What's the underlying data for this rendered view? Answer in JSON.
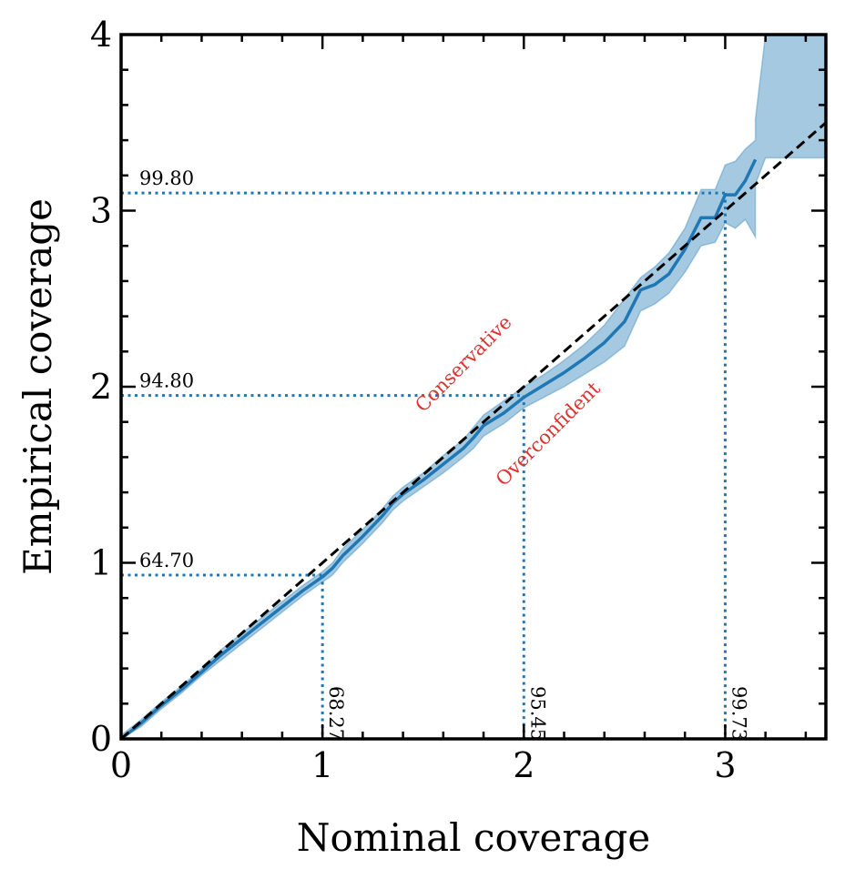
{
  "chart_data": {
    "type": "line",
    "title": "",
    "xlabel": "Nominal coverage",
    "ylabel": "Empirical coverage",
    "xlim": [
      0,
      3.5
    ],
    "ylim": [
      0,
      4
    ],
    "xticks": [
      0,
      1,
      2,
      3
    ],
    "yticks": [
      0,
      1,
      2,
      3,
      4
    ],
    "xtick_labels": [
      "0",
      "1",
      "2",
      "3"
    ],
    "ytick_labels": [
      "0",
      "1",
      "2",
      "3",
      "4"
    ],
    "grid": false,
    "series": [
      {
        "color": "#1f77b4",
        "x": [
          0.0,
          0.1,
          0.2,
          0.3,
          0.4,
          0.5,
          0.6,
          0.7,
          0.8,
          0.9,
          1.0,
          1.05,
          1.1,
          1.2,
          1.3,
          1.35,
          1.4,
          1.5,
          1.6,
          1.7,
          1.75,
          1.8,
          1.9,
          2.0,
          2.1,
          2.2,
          2.3,
          2.4,
          2.5,
          2.58,
          2.65,
          2.72,
          2.8,
          2.88,
          2.95,
          3.0,
          3.05,
          3.1,
          3.15
        ],
        "y": [
          0.0,
          0.09,
          0.19,
          0.28,
          0.38,
          0.48,
          0.57,
          0.66,
          0.75,
          0.84,
          0.92,
          0.97,
          1.04,
          1.15,
          1.27,
          1.34,
          1.39,
          1.47,
          1.56,
          1.65,
          1.71,
          1.78,
          1.85,
          1.94,
          2.01,
          2.08,
          2.16,
          2.25,
          2.37,
          2.55,
          2.58,
          2.64,
          2.78,
          2.96,
          2.96,
          3.09,
          3.09,
          3.17,
          3.29
        ],
        "band_lower": [
          0.0,
          0.07,
          0.17,
          0.26,
          0.36,
          0.45,
          0.54,
          0.63,
          0.72,
          0.81,
          0.89,
          0.93,
          1.0,
          1.11,
          1.23,
          1.3,
          1.35,
          1.43,
          1.51,
          1.6,
          1.65,
          1.72,
          1.79,
          1.88,
          1.94,
          2.0,
          2.07,
          2.14,
          2.23,
          2.43,
          2.47,
          2.53,
          2.65,
          2.8,
          2.82,
          2.93,
          2.9,
          2.95,
          2.85
        ],
        "band_upper": [
          0.02,
          0.11,
          0.21,
          0.3,
          0.4,
          0.51,
          0.6,
          0.69,
          0.78,
          0.87,
          0.95,
          1.0,
          1.08,
          1.19,
          1.31,
          1.38,
          1.43,
          1.51,
          1.61,
          1.7,
          1.77,
          1.84,
          1.92,
          2.0,
          2.07,
          2.15,
          2.24,
          2.35,
          2.5,
          2.62,
          2.68,
          2.76,
          2.9,
          3.12,
          3.12,
          3.26,
          3.28,
          3.35,
          3.4
        ]
      },
      {
        "color": "#000000",
        "style": "dashed",
        "x": [
          0,
          3.5
        ],
        "y": [
          0,
          3.5
        ]
      }
    ],
    "upper_band_tail": {
      "x": [
        3.15,
        3.2,
        3.5
      ],
      "lower": [
        3.15,
        3.3,
        3.3
      ],
      "upper": [
        3.52,
        4.0,
        4.0
      ]
    },
    "reference_lines": [
      {
        "x": 1.0,
        "y": 0.93,
        "x_label": "68.27",
        "y_label": "64.70"
      },
      {
        "x": 2.0,
        "y": 1.95,
        "x_label": "95.45",
        "y_label": "94.80"
      },
      {
        "x": 3.0,
        "y": 3.1,
        "x_label": "99.73",
        "y_label": "99.80"
      }
    ],
    "annotations": [
      {
        "text": "Conservative",
        "x": 1.5,
        "y": 1.85,
        "angle": 45,
        "color": "#e03030"
      },
      {
        "text": "Overconfident",
        "x": 1.9,
        "y": 1.43,
        "angle": 45,
        "color": "#e03030"
      }
    ]
  }
}
